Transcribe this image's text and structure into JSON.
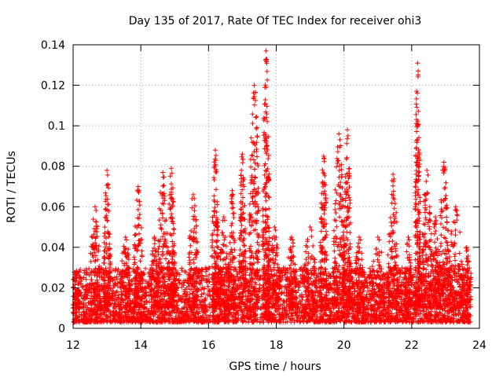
{
  "chart_data": {
    "type": "scatter",
    "title": "Day 135 of 2017, Rate Of TEC Index for receiver ohi3",
    "xlabel": "GPS time / hours",
    "ylabel": "ROTI / TECUs",
    "xlim": [
      12,
      24
    ],
    "ylim": [
      0,
      0.14
    ],
    "x_ticks": [
      12,
      14,
      16,
      18,
      20,
      22,
      24
    ],
    "x_tick_labels": [
      "12",
      "14",
      "16",
      "18",
      "20",
      "22",
      "24"
    ],
    "y_ticks": [
      0,
      0.02,
      0.04,
      0.06,
      0.08,
      0.1,
      0.12,
      0.14
    ],
    "y_tick_labels": [
      "0",
      "0.02",
      "0.04",
      "0.06",
      "0.08",
      "0.1",
      "0.12",
      "0.14"
    ],
    "grid": true,
    "marker": "+",
    "series_color": "#ff0000",
    "baseline": {
      "x_range": [
        12.0,
        23.75
      ],
      "y_range": [
        0.003,
        0.03
      ],
      "gaps": [
        [
          16.05,
          16.12
        ],
        [
          16.9,
          16.95
        ],
        [
          17.45,
          17.5
        ]
      ]
    },
    "peaks": [
      {
        "x_range": [
          12.0,
          12.2
        ],
        "y_max": 0.028
      },
      {
        "x_range": [
          12.5,
          12.8
        ],
        "y_max": 0.06
      },
      {
        "x_range": [
          12.9,
          13.1
        ],
        "y_max": 0.078
      },
      {
        "x_range": [
          13.4,
          13.7
        ],
        "y_max": 0.045
      },
      {
        "x_range": [
          13.8,
          14.05
        ],
        "y_max": 0.07
      },
      {
        "x_range": [
          14.3,
          14.5
        ],
        "y_max": 0.045
      },
      {
        "x_range": [
          14.5,
          14.8
        ],
        "y_max": 0.077
      },
      {
        "x_range": [
          14.8,
          15.0
        ],
        "y_max": 0.079
      },
      {
        "x_range": [
          15.4,
          15.7
        ],
        "y_max": 0.066
      },
      {
        "x_range": [
          16.1,
          16.3
        ],
        "y_max": 0.088
      },
      {
        "x_range": [
          16.3,
          16.6
        ],
        "y_max": 0.055
      },
      {
        "x_range": [
          16.6,
          16.8
        ],
        "y_max": 0.068
      },
      {
        "x_range": [
          16.9,
          17.1
        ],
        "y_max": 0.086
      },
      {
        "x_range": [
          17.2,
          17.5
        ],
        "y_max": 0.12
      },
      {
        "x_range": [
          17.6,
          17.8
        ],
        "y_max": 0.137
      },
      {
        "x_range": [
          17.8,
          18.1
        ],
        "y_max": 0.05
      },
      {
        "x_range": [
          18.3,
          18.6
        ],
        "y_max": 0.045
      },
      {
        "x_range": [
          18.8,
          19.2
        ],
        "y_max": 0.05
      },
      {
        "x_range": [
          19.3,
          19.5
        ],
        "y_max": 0.085
      },
      {
        "x_range": [
          19.7,
          20.0
        ],
        "y_max": 0.096
      },
      {
        "x_range": [
          20.0,
          20.2
        ],
        "y_max": 0.098
      },
      {
        "x_range": [
          20.3,
          20.6
        ],
        "y_max": 0.045
      },
      {
        "x_range": [
          20.8,
          21.2
        ],
        "y_max": 0.045
      },
      {
        "x_range": [
          21.3,
          21.6
        ],
        "y_max": 0.076
      },
      {
        "x_range": [
          21.8,
          22.0
        ],
        "y_max": 0.045
      },
      {
        "x_range": [
          22.1,
          22.25
        ],
        "y_max": 0.131
      },
      {
        "x_range": [
          22.3,
          22.6
        ],
        "y_max": 0.078
      },
      {
        "x_range": [
          22.6,
          22.8
        ],
        "y_max": 0.055
      },
      {
        "x_range": [
          22.8,
          23.1
        ],
        "y_max": 0.082
      },
      {
        "x_range": [
          23.1,
          23.5
        ],
        "y_max": 0.06
      },
      {
        "x_range": [
          23.5,
          23.75
        ],
        "y_max": 0.04
      }
    ]
  }
}
